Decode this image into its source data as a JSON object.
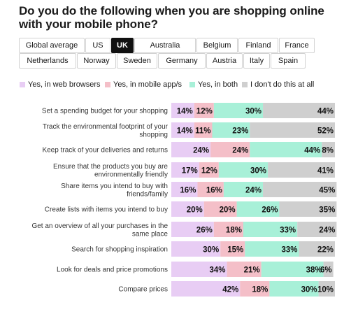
{
  "title": "Do you do the following when you are shopping online with your mobile phone?",
  "countries": {
    "active": "UK",
    "row1": [
      "Global average",
      "US",
      "UK",
      "Australia",
      "Belgium",
      "Finland",
      "France"
    ],
    "row2": [
      "Netherlands",
      "Norway",
      "Sweden",
      "Germany",
      "Austria",
      "Italy",
      "Spain"
    ]
  },
  "colors": {
    "web": "#e8cdf4",
    "app": "#f4bfc8",
    "both": "#a8f0d8",
    "none": "#cfcfcf"
  },
  "chart_data": {
    "type": "bar",
    "stacked": true,
    "orientation": "horizontal",
    "unit": "%",
    "legend_position": "top",
    "categories": [
      [
        "Set a spending budget for your shopping"
      ],
      [
        "Track the environmental footprint of your",
        "shopping"
      ],
      [
        "Keep track of your deliveries and returns"
      ],
      [
        "Ensure that the products you buy are",
        "environmentally friendly"
      ],
      [
        "Share items you intend to buy with",
        "friends/family"
      ],
      [
        "Create lists with items you intend to buy"
      ],
      [
        "Get an overview of all your purchases in the",
        "same place"
      ],
      [
        "Search for shopping inspiration"
      ],
      [
        "Look for deals and price promotions"
      ],
      [
        "Compare prices"
      ]
    ],
    "series": [
      {
        "name": "Yes, in web browsers",
        "values": [
          14,
          14,
          24,
          17,
          16,
          20,
          26,
          30,
          34,
          42
        ]
      },
      {
        "name": "Yes, in mobile app/s",
        "values": [
          12,
          11,
          24,
          12,
          16,
          20,
          18,
          15,
          21,
          18
        ]
      },
      {
        "name": "Yes, in both",
        "values": [
          30,
          23,
          44,
          30,
          24,
          26,
          33,
          33,
          38,
          30
        ]
      },
      {
        "name": "I don't do this at all",
        "values": [
          44,
          52,
          8,
          41,
          45,
          35,
          24,
          22,
          6,
          10
        ]
      }
    ]
  }
}
